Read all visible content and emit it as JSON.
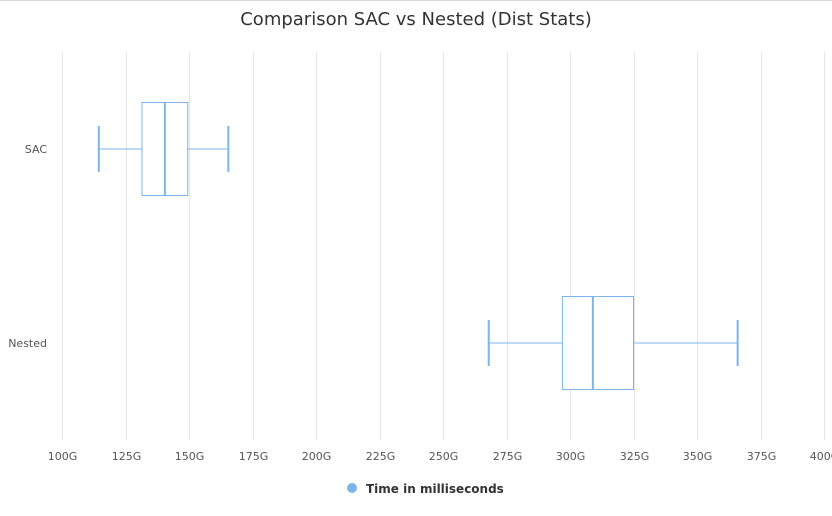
{
  "chart_data": {
    "type": "boxplot",
    "orientation": "horizontal",
    "title": "Comparison SAC vs Nested (Dist Stats)",
    "xlabel": "",
    "ylabel": "",
    "xlim": [
      100,
      400
    ],
    "tick_values": [
      100,
      125,
      150,
      175,
      200,
      225,
      250,
      275,
      300,
      325,
      350,
      375,
      400
    ],
    "tick_labels": [
      "100G",
      "125G",
      "150G",
      "175G",
      "200G",
      "225G",
      "250G",
      "275G",
      "300G",
      "325G",
      "350G",
      "375G",
      "400G"
    ],
    "grid": true,
    "categories": [
      "SAC",
      "Nested"
    ],
    "series": [
      {
        "name": "Time in milliseconds",
        "color": "#7cb5ec",
        "boxes": [
          {
            "category": "SAC",
            "low": 114.5,
            "q1": 131.5,
            "median": 140.5,
            "q3": 149.5,
            "high": 165.5
          },
          {
            "category": "Nested",
            "low": 268,
            "q1": 297,
            "median": 309,
            "q3": 325,
            "high": 366
          }
        ]
      }
    ],
    "legend": {
      "position": "bottom-center",
      "entries": [
        "Time in milliseconds"
      ]
    }
  }
}
